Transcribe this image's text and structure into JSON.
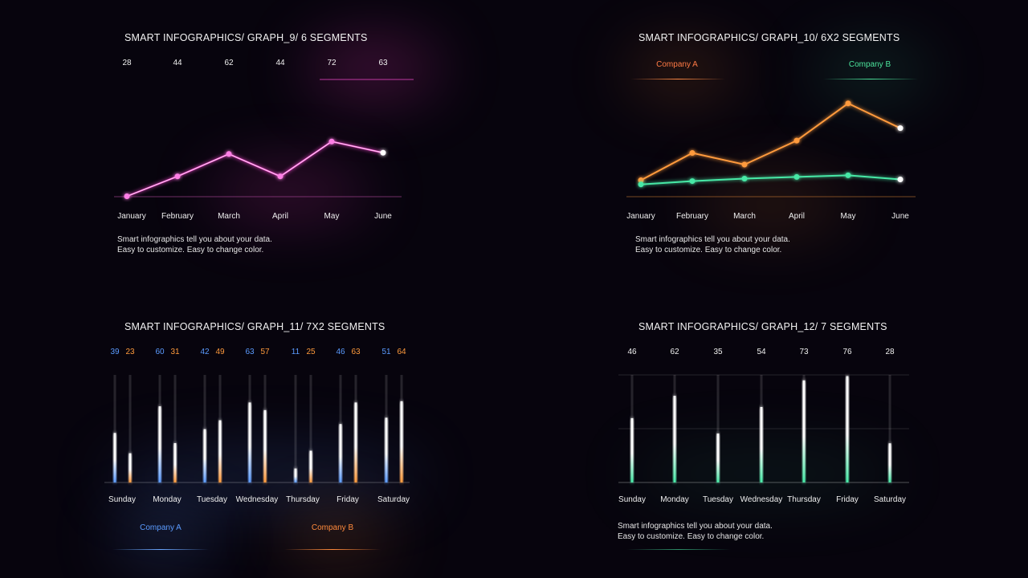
{
  "colors": {
    "pink": "#ff4fd8",
    "orange": "#ff9a3c",
    "green": "#47e8a6",
    "blue": "#5b9bff",
    "company_a_legend": "#ff7a45",
    "company_b_legend": "#4be39b"
  },
  "captions": {
    "line1": "Smart infographics tell you about your data.",
    "line2": "Easy to customize. Easy to change color."
  },
  "chart_data": [
    {
      "id": "graph9",
      "type": "line",
      "title": "SMART INFOGRAPHICS/ GRAPH_9/ 6 SEGMENTS",
      "categories": [
        "January",
        "February",
        "March",
        "April",
        "May",
        "June"
      ],
      "series": [
        {
          "values": [
            28,
            44,
            62,
            44,
            72,
            63
          ]
        }
      ]
    },
    {
      "id": "graph10",
      "type": "line",
      "title": "SMART INFOGRAPHICS/ GRAPH_10/ 6X2 SEGMENTS",
      "categories": [
        "January",
        "February",
        "March",
        "April",
        "May",
        "June"
      ],
      "series": [
        {
          "name": "Company A",
          "values": [
            15,
            48,
            34,
            63,
            108,
            78
          ]
        },
        {
          "name": "Company B",
          "values": [
            10,
            14,
            17,
            19,
            21,
            16
          ]
        }
      ],
      "ylim": [
        0,
        120
      ]
    },
    {
      "id": "graph11",
      "type": "bar",
      "title": "SMART INFOGRAPHICS/ GRAPH_11/ 7X2 SEGMENTS",
      "categories": [
        "Sunday",
        "Monday",
        "Tuesday",
        "Wednesday",
        "Thursday",
        "Friday",
        "Saturday"
      ],
      "series": [
        {
          "name": "Company A",
          "values": [
            39,
            60,
            42,
            63,
            11,
            46,
            51
          ]
        },
        {
          "name": "Company B",
          "values": [
            23,
            31,
            49,
            57,
            25,
            63,
            64
          ]
        }
      ],
      "ylim": [
        0,
        100
      ]
    },
    {
      "id": "graph12",
      "type": "bar",
      "title": "SMART INFOGRAPHICS/ GRAPH_12/ 7 SEGMENTS",
      "categories": [
        "Sunday",
        "Monday",
        "Tuesday",
        "Wednesday",
        "Thursday",
        "Friday",
        "Saturday"
      ],
      "series": [
        {
          "values": [
            46,
            62,
            35,
            54,
            73,
            76,
            28
          ]
        }
      ],
      "ylim": [
        0,
        100
      ],
      "grid": true
    }
  ]
}
